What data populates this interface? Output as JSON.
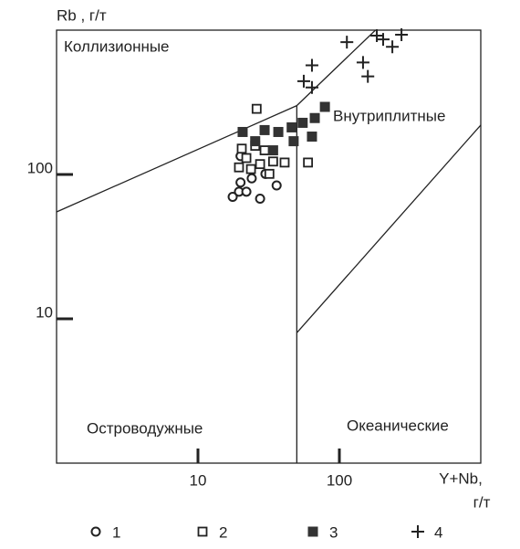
{
  "chart_data": {
    "type": "scatter",
    "ylabel": "Rb , г/т",
    "xlabel": [
      "Y+Nb,",
      "г/т"
    ],
    "xlog": true,
    "ylog": true,
    "xlim": [
      1,
      1000
    ],
    "ylim": [
      1,
      1000
    ],
    "xticks": [
      10,
      100
    ],
    "yticks": [
      10,
      100
    ],
    "annotations": [
      "Коллизионные",
      "Внутриплитные",
      "Островодужные",
      "Океанические"
    ],
    "boundaries": [
      {
        "x": [
          1,
          50
        ],
        "y": [
          55,
          300
        ]
      },
      {
        "x": [
          50,
          180
        ],
        "y": [
          300,
          1000
        ]
      },
      {
        "x": [
          50,
          50
        ],
        "y": [
          1,
          300
        ]
      },
      {
        "x": [
          50,
          1000
        ],
        "y": [
          8,
          220
        ]
      }
    ],
    "series": [
      {
        "name": "1",
        "marker": "circle",
        "color": "#222",
        "x": [
          17.6,
          19.5,
          22,
          27.5,
          36,
          20,
          20,
          24,
          30
        ],
        "values": [
          70,
          76,
          76,
          68,
          84,
          88,
          134,
          94,
          101
        ]
      },
      {
        "name": "2",
        "marker": "square",
        "color": "#222",
        "x": [
          26,
          60,
          19.5,
          22,
          25.4,
          29.6,
          34,
          41,
          23.7,
          32,
          27.5,
          20.4
        ],
        "values": [
          285,
          121,
          112,
          130,
          158,
          147,
          123,
          121,
          109,
          101,
          118,
          151
        ]
      },
      {
        "name": "3",
        "marker": "filled-square",
        "color": "#333",
        "x": [
          20.7,
          29.6,
          37,
          46,
          55,
          67,
          79,
          64,
          47.5,
          34,
          25.4
        ],
        "values": [
          197,
          203,
          197,
          212,
          228,
          246,
          294,
          183,
          170,
          147,
          170
        ]
      },
      {
        "name": "4",
        "marker": "plus",
        "color": "#222",
        "x": [
          113,
          184,
          275,
          237,
          147,
          159,
          64,
          56,
          64,
          204
        ],
        "values": [
          826,
          916,
          929,
          767,
          597,
          478,
          571,
          443,
          401,
          863
        ]
      }
    ]
  }
}
